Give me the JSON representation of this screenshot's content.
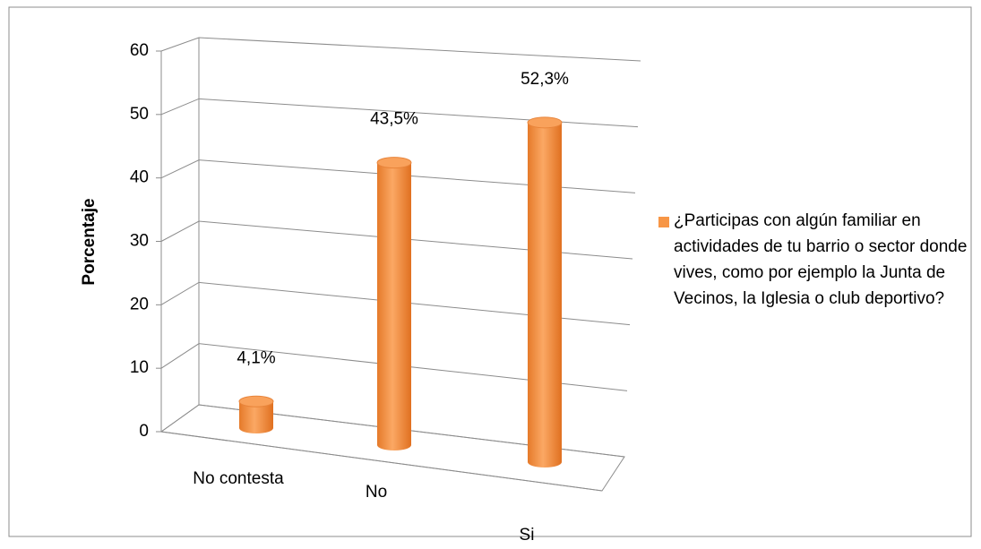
{
  "chart_data": {
    "type": "bar3d",
    "y_label": "Porcentaje",
    "categories": [
      "No contesta",
      "No",
      "Si"
    ],
    "series": [
      {
        "name": "¿Participas con algún familiar en actividades de tu barrio o sector donde vives, como por ejemplo la Junta de Vecinos, la Iglesia o club deportivo?",
        "color": "#f79646",
        "values": [
          4.1,
          43.5,
          52.3
        ],
        "value_labels": [
          "4,1%",
          "43,5%",
          "52,3%"
        ]
      }
    ],
    "ylim": [
      0,
      60
    ],
    "yticks": [
      0,
      10,
      20,
      30,
      40,
      50,
      60
    ],
    "grid": true,
    "legend": "right"
  }
}
